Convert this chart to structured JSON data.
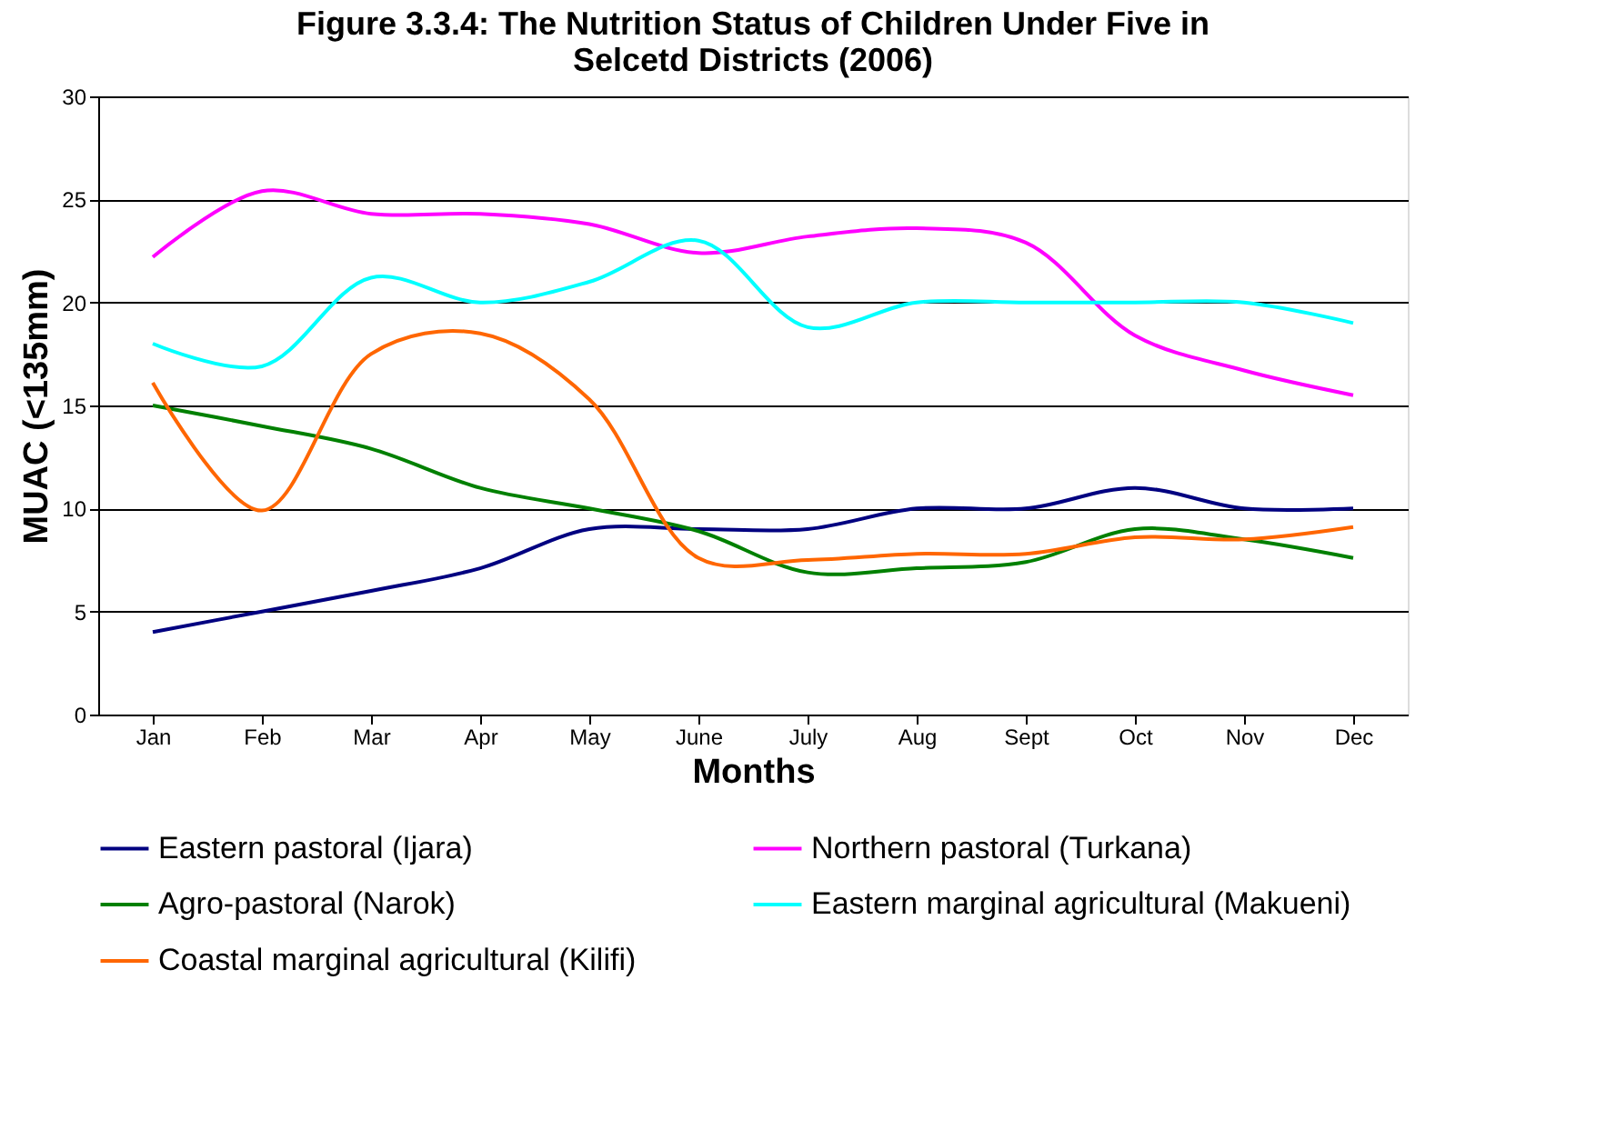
{
  "chart_data": {
    "type": "line",
    "title": [
      "Figure 3.3.4: The Nutrition Status of Children Under Five in",
      "Selcetd Districts (2006)"
    ],
    "xlabel": "Months",
    "ylabel": "MUAC (<135mm)",
    "categories": [
      "Jan",
      "Feb",
      "Mar",
      "Apr",
      "May",
      "June",
      "July",
      "Aug",
      "Sept",
      "Oct",
      "Nov",
      "Dec"
    ],
    "series": [
      {
        "name": "Eastern pastoral (Ijara)",
        "color": "#000080",
        "values": [
          4.0,
          5.0,
          6.0,
          7.1,
          9.0,
          9.0,
          9.0,
          10,
          10,
          11.0,
          10,
          10
        ]
      },
      {
        "name": "Northern pastoral (Turkana)",
        "color": "#ff00ff",
        "values": [
          22.2,
          25.4,
          24.3,
          24.3,
          23.8,
          22.4,
          23.2,
          23.6,
          22.9,
          18.4,
          16.7,
          15.5
        ]
      },
      {
        "name": "Agro-pastoral (Narok)",
        "color": "#008000",
        "values": [
          15.0,
          14.0,
          12.9,
          11.0,
          10.0,
          8.9,
          6.9,
          7.1,
          7.4,
          9.0,
          8.5,
          7.6
        ]
      },
      {
        "name": "Eastern marginal agricultural (Makueni)",
        "color": "#00ffff",
        "values": [
          18.0,
          16.9,
          21.2,
          20.0,
          21.0,
          23.0,
          18.8,
          20,
          20,
          20,
          20,
          19.0
        ]
      },
      {
        "name": "Coastal marginal agricultural (Kilifi)",
        "color": "#ff6600",
        "values": [
          16.1,
          9.9,
          17.5,
          18.5,
          15.3,
          7.6,
          7.5,
          7.8,
          7.8,
          8.6,
          8.5,
          9.1
        ]
      }
    ],
    "ylim": [
      0,
      30
    ],
    "yticks": [
      0,
      5,
      10,
      15,
      20,
      25,
      30
    ],
    "grid": "y",
    "legend": "bottom",
    "line_style": "solid",
    "marker": "none"
  }
}
